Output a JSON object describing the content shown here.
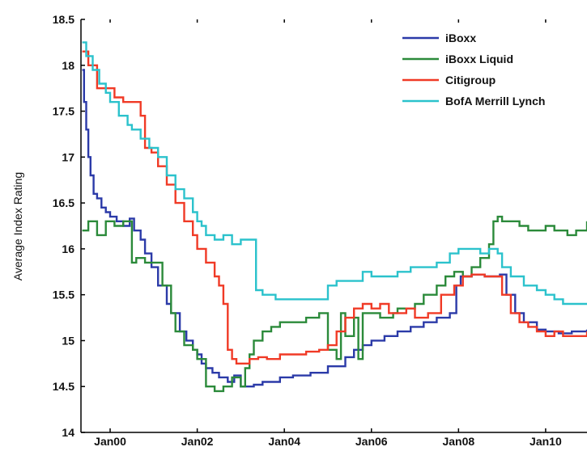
{
  "chart_data": {
    "type": "line",
    "title": "",
    "xlabel": "",
    "ylabel": "Average Index Rating",
    "ylim": [
      14,
      18.5
    ],
    "xlim": [
      1999.33,
      2010.95
    ],
    "yticks": [
      14,
      14.5,
      15,
      15.5,
      16,
      16.5,
      17,
      17.5,
      18,
      18.5
    ],
    "ytick_labels": [
      "14",
      "14.5",
      "15",
      "15.5",
      "16",
      "16.5",
      "17",
      "17.5",
      "18",
      "18.5"
    ],
    "xticks": [
      2000,
      2002,
      2004,
      2006,
      2008,
      2010
    ],
    "xtick_labels": [
      "Jan00",
      "Jan02",
      "Jan04",
      "Jan06",
      "Jan08",
      "Jan10"
    ],
    "grid": false,
    "legend_position": "top-right",
    "series": [
      {
        "name": "iBoxx",
        "color": "#2b3aa8",
        "x": [
          1999.36,
          1999.4,
          1999.45,
          1999.5,
          1999.55,
          1999.62,
          1999.7,
          1999.8,
          1999.9,
          2000.0,
          2000.15,
          2000.3,
          2000.45,
          2000.55,
          2000.7,
          2000.8,
          2000.95,
          2001.1,
          2001.3,
          2001.4,
          2001.6,
          2001.75,
          2001.9,
          2002.0,
          2002.1,
          2002.2,
          2002.35,
          2002.5,
          2002.7,
          2002.85,
          2003.0,
          2003.1,
          2003.3,
          2003.5,
          2003.7,
          2003.9,
          2004.2,
          2004.6,
          2005.0,
          2005.4,
          2005.6,
          2005.8,
          2006.0,
          2006.3,
          2006.6,
          2006.9,
          2007.2,
          2007.5,
          2007.8,
          2007.95,
          2008.05,
          2008.3,
          2008.6,
          2008.8,
          2008.95,
          2009.1,
          2009.3,
          2009.5,
          2009.8,
          2010.0,
          2010.3,
          2010.6,
          2010.95
        ],
        "values": [
          17.95,
          17.6,
          17.3,
          17.0,
          16.8,
          16.6,
          16.55,
          16.45,
          16.4,
          16.35,
          16.3,
          16.25,
          16.33,
          16.2,
          16.1,
          15.95,
          15.8,
          15.6,
          15.4,
          15.3,
          15.1,
          15.0,
          14.9,
          14.85,
          14.75,
          14.7,
          14.65,
          14.6,
          14.55,
          14.62,
          14.5,
          14.5,
          14.52,
          14.55,
          14.55,
          14.6,
          14.62,
          14.65,
          14.72,
          14.82,
          14.9,
          14.95,
          15.0,
          15.05,
          15.1,
          15.15,
          15.2,
          15.25,
          15.3,
          15.6,
          15.7,
          15.72,
          15.7,
          15.7,
          15.72,
          15.5,
          15.3,
          15.2,
          15.12,
          15.1,
          15.08,
          15.1,
          15.12
        ]
      },
      {
        "name": "iBoxx Liquid",
        "color": "#2b8a3a",
        "x": [
          1999.36,
          1999.5,
          1999.7,
          1999.9,
          2000.1,
          2000.3,
          2000.5,
          2000.6,
          2000.8,
          2001.0,
          2001.2,
          2001.4,
          2001.5,
          2001.7,
          2001.9,
          2002.0,
          2002.2,
          2002.4,
          2002.6,
          2002.8,
          2003.0,
          2003.1,
          2003.2,
          2003.3,
          2003.5,
          2003.7,
          2003.9,
          2004.2,
          2004.5,
          2004.8,
          2005.0,
          2005.2,
          2005.3,
          2005.4,
          2005.6,
          2005.7,
          2005.8,
          2006.0,
          2006.2,
          2006.4,
          2006.5,
          2006.6,
          2006.8,
          2007.0,
          2007.2,
          2007.5,
          2007.7,
          2007.9,
          2008.1,
          2008.3,
          2008.5,
          2008.7,
          2008.8,
          2008.9,
          2009.0,
          2009.2,
          2009.4,
          2009.6,
          2009.8,
          2010.0,
          2010.2,
          2010.5,
          2010.7,
          2010.95
        ],
        "values": [
          16.2,
          16.3,
          16.15,
          16.3,
          16.25,
          16.3,
          15.85,
          15.9,
          15.85,
          15.85,
          15.6,
          15.3,
          15.1,
          14.95,
          14.9,
          14.8,
          14.5,
          14.45,
          14.5,
          14.6,
          14.5,
          14.7,
          14.85,
          15.0,
          15.1,
          15.15,
          15.2,
          15.2,
          15.25,
          15.3,
          14.9,
          14.8,
          15.3,
          15.05,
          15.25,
          14.8,
          15.3,
          15.3,
          15.25,
          15.25,
          15.3,
          15.35,
          15.35,
          15.4,
          15.5,
          15.6,
          15.7,
          15.75,
          15.7,
          15.8,
          15.9,
          16.05,
          16.3,
          16.35,
          16.3,
          16.3,
          16.25,
          16.2,
          16.2,
          16.25,
          16.2,
          16.15,
          16.2,
          16.3
        ]
      },
      {
        "name": "Citigroup",
        "color": "#f03a26",
        "x": [
          1999.36,
          1999.5,
          1999.7,
          1999.9,
          2000.1,
          2000.3,
          2000.5,
          2000.7,
          2000.8,
          2000.95,
          2001.1,
          2001.3,
          2001.5,
          2001.7,
          2001.9,
          2002.0,
          2002.2,
          2002.4,
          2002.5,
          2002.6,
          2002.7,
          2002.8,
          2002.9,
          2003.0,
          2003.2,
          2003.4,
          2003.6,
          2003.9,
          2004.2,
          2004.5,
          2004.8,
          2005.0,
          2005.2,
          2005.4,
          2005.6,
          2005.8,
          2006.0,
          2006.2,
          2006.4,
          2006.6,
          2006.8,
          2007.0,
          2007.3,
          2007.6,
          2007.9,
          2008.1,
          2008.3,
          2008.6,
          2008.8,
          2009.0,
          2009.2,
          2009.4,
          2009.6,
          2009.8,
          2010.0,
          2010.2,
          2010.4,
          2010.6,
          2010.8,
          2010.95
        ],
        "values": [
          18.15,
          18.0,
          17.75,
          17.75,
          17.65,
          17.6,
          17.6,
          17.45,
          17.1,
          17.05,
          16.9,
          16.7,
          16.5,
          16.3,
          16.15,
          16.0,
          15.85,
          15.7,
          15.6,
          15.4,
          14.9,
          14.8,
          14.75,
          14.75,
          14.8,
          14.82,
          14.8,
          14.85,
          14.85,
          14.88,
          14.9,
          14.95,
          15.1,
          15.25,
          15.35,
          15.4,
          15.35,
          15.4,
          15.3,
          15.3,
          15.35,
          15.25,
          15.3,
          15.5,
          15.6,
          15.7,
          15.72,
          15.7,
          15.7,
          15.5,
          15.3,
          15.2,
          15.15,
          15.1,
          15.05,
          15.1,
          15.05,
          15.05,
          15.05,
          15.1
        ]
      },
      {
        "name": "BofA Merrill Lynch",
        "color": "#2bc2cc",
        "x": [
          1999.36,
          1999.45,
          1999.6,
          1999.75,
          1999.9,
          2000.0,
          2000.2,
          2000.4,
          2000.5,
          2000.7,
          2000.9,
          2001.1,
          2001.3,
          2001.5,
          2001.7,
          2001.9,
          2002.0,
          2002.1,
          2002.2,
          2002.4,
          2002.6,
          2002.8,
          2003.0,
          2003.15,
          2003.35,
          2003.5,
          2003.8,
          2004.0,
          2004.3,
          2004.6,
          2004.9,
          2005.0,
          2005.2,
          2005.5,
          2005.8,
          2006.0,
          2006.3,
          2006.6,
          2006.9,
          2007.2,
          2007.5,
          2007.8,
          2008.0,
          2008.3,
          2008.5,
          2008.7,
          2008.9,
          2009.0,
          2009.2,
          2009.5,
          2009.8,
          2010.0,
          2010.2,
          2010.4,
          2010.6,
          2010.95
        ],
        "values": [
          18.25,
          18.1,
          17.95,
          17.8,
          17.7,
          17.6,
          17.45,
          17.35,
          17.3,
          17.2,
          17.1,
          17.0,
          16.8,
          16.65,
          16.55,
          16.4,
          16.3,
          16.25,
          16.15,
          16.1,
          16.15,
          16.05,
          16.1,
          16.1,
          15.55,
          15.5,
          15.45,
          15.45,
          15.45,
          15.45,
          15.45,
          15.6,
          15.65,
          15.65,
          15.75,
          15.7,
          15.7,
          15.75,
          15.8,
          15.8,
          15.85,
          15.95,
          16.0,
          16.0,
          15.95,
          16.0,
          15.95,
          15.8,
          15.7,
          15.6,
          15.55,
          15.5,
          15.45,
          15.4,
          15.4,
          15.4
        ]
      }
    ]
  }
}
